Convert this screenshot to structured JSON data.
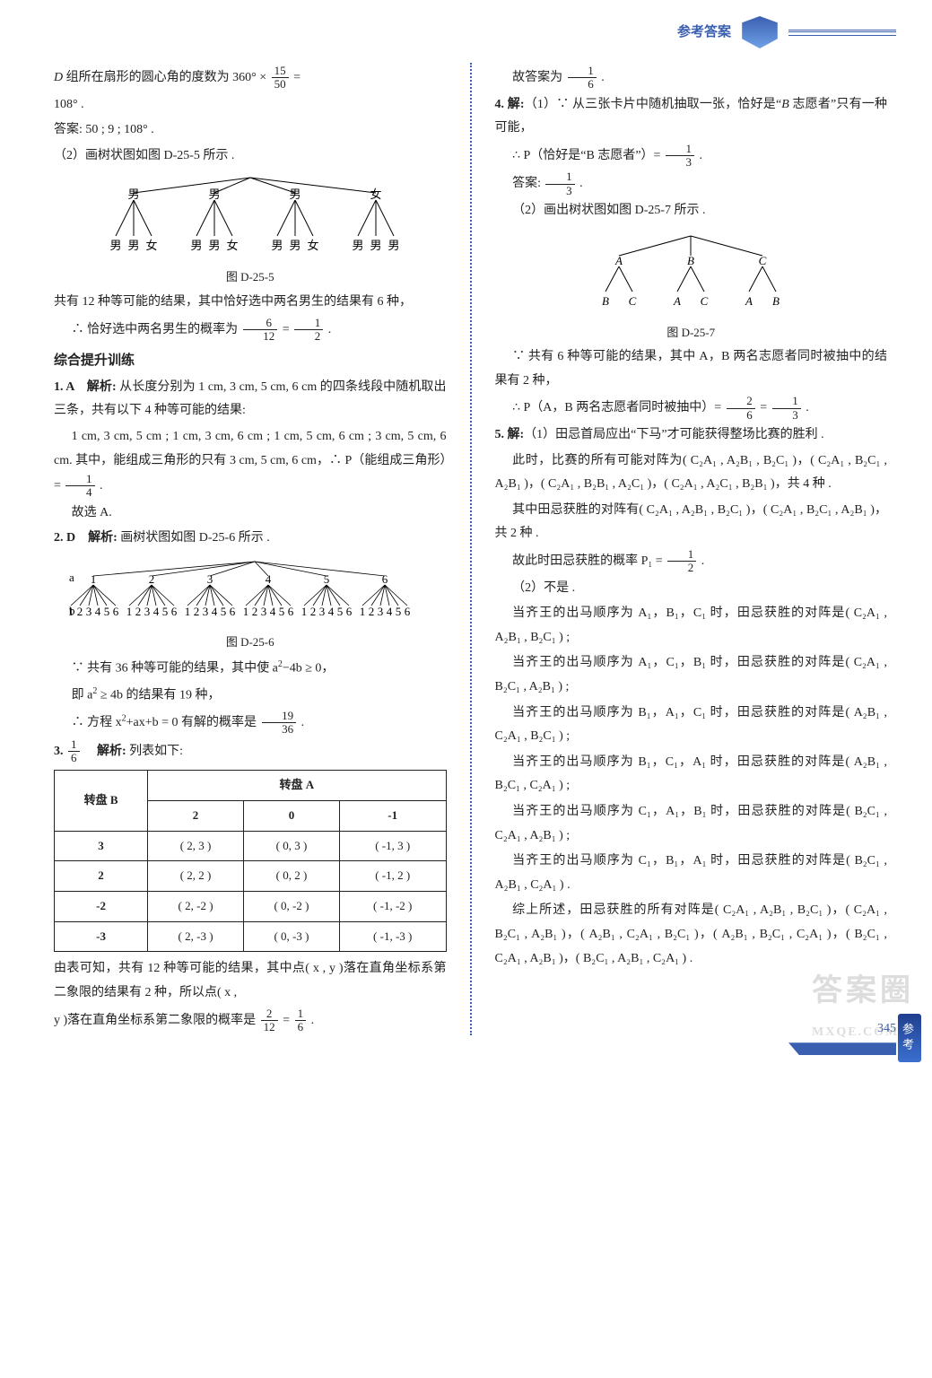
{
  "header": {
    "label": "参考答案"
  },
  "sideTab": "参考答案",
  "pageNumber": "345",
  "watermark": {
    "main": "答案圈",
    "sub": "MXQE.COM"
  },
  "left": {
    "l1a": "D ",
    "l1b": "组所在扇形的圆心角的度数为 360° × ",
    "l1frac": {
      "n": "15",
      "d": "50"
    },
    "l1c": " =",
    "l2": "108° .",
    "l3": "答案: 50 ; 9 ; 108° .",
    "l4": "（2）画树状图如图 D-25-5 所示 .",
    "tree1": {
      "caption": "图 D-25-5",
      "top": [
        "男",
        "男",
        "男",
        "女"
      ],
      "leaves": [
        "男",
        "男",
        "女",
        "男",
        "男",
        "女",
        "男",
        "男",
        "女",
        "男",
        "男",
        "男"
      ]
    },
    "l5": "共有 12 种等可能的结果，其中恰好选中两名男生的结果有 6 种，",
    "l6a": "∴ 恰好选中两名男生的概率为 ",
    "l6f1": {
      "n": "6",
      "d": "12"
    },
    "l6b": " = ",
    "l6f2": {
      "n": "1",
      "d": "2"
    },
    "l6c": " .",
    "secTitle": "综合提升训练",
    "q1": {
      "head": "1. A　解析:",
      "t1": " 从长度分别为 1 cm, 3 cm, 5 cm, 6 cm 的四条线段中随机取出三条，共有以下 4 种等可能的结果:",
      "t2": "1 cm, 3 cm, 5 cm ; 1 cm, 3 cm, 6 cm ; 1 cm, 5 cm, 6 cm ; 3 cm, 5 cm, 6 cm. 其中，能组成三角形的只有 3 cm, 5 cm, 6 cm，∴ P（能组成三角形）= ",
      "f": {
        "n": "1",
        "d": "4"
      },
      "t3": " .",
      "t4": "故选 A."
    },
    "q2": {
      "head": "2. D　解析:",
      "t1": " 画树状图如图 D-25-6 所示 .",
      "caption": "图 D-25-6",
      "aLabel": "a",
      "bLabel": "b",
      "aVals": [
        "1",
        "2",
        "3",
        "4",
        "5",
        "6"
      ],
      "bVals": [
        "1",
        "2",
        "3",
        "4",
        "5",
        "6"
      ],
      "t2a": "∵ 共有 36 种等可能的结果，其中使 a",
      "t2sup": "2",
      "t2b": "−4b ≥ 0，",
      "t3a": "即 a",
      "t3sup": "2",
      "t3b": " ≥ 4b 的结果有 19 种，",
      "t4a": "∴ 方程 x",
      "t4s1": "2",
      "t4b": "+ax+b = 0 有解的概率是",
      "f": {
        "n": "19",
        "d": "36"
      },
      "t4c": " ."
    },
    "q3": {
      "head": "3. ",
      "hf": {
        "n": "1",
        "d": "6"
      },
      "headb": "　解析:",
      "t1": " 列表如下:",
      "table": {
        "corner": "转盘 B",
        "topHeader": "转盘 A",
        "cols": [
          "2",
          "0",
          "-1"
        ],
        "rows": [
          {
            "h": "3",
            "c": [
              "( 2, 3 )",
              "( 0, 3 )",
              "( -1, 3 )"
            ]
          },
          {
            "h": "2",
            "c": [
              "( 2, 2 )",
              "( 0, 2 )",
              "( -1, 2 )"
            ]
          },
          {
            "h": "-2",
            "c": [
              "( 2, -2 )",
              "( 0, -2 )",
              "( -1, -2 )"
            ]
          },
          {
            "h": "-3",
            "c": [
              "( 2, -3 )",
              "( 0, -3 )",
              "( -1, -3 )"
            ]
          }
        ]
      },
      "t2": "由表可知，共有 12 种等可能的结果，其中点( x , y )落在直角坐标系第二象限的结果有 2 种，所以点( x , ",
      "t3a": "y )落在直角坐标系第二象限的概率是 ",
      "f1": {
        "n": "2",
        "d": "12"
      },
      "t3b": " = ",
      "f2": {
        "n": "1",
        "d": "6"
      },
      "t3c": " ."
    }
  },
  "right": {
    "r1a": "故答案为",
    "r1f": {
      "n": "1",
      "d": "6"
    },
    "r1b": " .",
    "q4": {
      "head": "4. 解:",
      "t1a": "（1）∵ 从三张卡片中随机抽取一张，恰好是“",
      "t1b": "B",
      "t1c": " 志愿者”只有一种可能，",
      "t2a": "∴ P（恰好是“B 志愿者”）= ",
      "f1": {
        "n": "1",
        "d": "3"
      },
      "t2b": " .",
      "t3a": "答案: ",
      "f2": {
        "n": "1",
        "d": "3"
      },
      "t3b": " .",
      "t4": "（2）画出树状图如图 D-25-7 所示 .",
      "tree": {
        "caption": "图 D-25-7",
        "top": [
          "A",
          "B",
          "C"
        ],
        "leaves": [
          [
            "B",
            "C"
          ],
          [
            "A",
            "C"
          ],
          [
            "A",
            "B"
          ]
        ]
      },
      "t5": "∵ 共有 6 种等可能的结果，其中 A，B 两名志愿者同时被抽中的结果有 2 种，",
      "t6a": "∴ P（A，B 两名志愿者同时被抽中）= ",
      "f3": {
        "n": "2",
        "d": "6"
      },
      "t6b": " = ",
      "f4": {
        "n": "1",
        "d": "3"
      },
      "t6c": " ."
    },
    "q5": {
      "head": "5. 解:",
      "t1": "（1）田忌首局应出“下马”才可能获得整场比赛的胜利 .",
      "t2": "此时，比赛的所有可能对阵为( C₂A₁ , A₂B₁ , B₂C₁ )，( C₂A₁ , B₂C₁ , A₂B₁ )，( C₂A₁ , B₂B₁ , A₂C₁ )，( C₂A₁ , A₂C₁ , B₂B₁ )，共 4 种 .",
      "t3": "其中田忌获胜的对阵有( C₂A₁ , A₂B₁ , B₂C₁ )，( C₂A₁ , B₂C₁ , A₂B₁ )，共 2 种 .",
      "t4a": "故此时田忌获胜的概率 P₁ = ",
      "f": {
        "n": "1",
        "d": "2"
      },
      "t4b": " .",
      "t5": "（2）不是 .",
      "t6": "当齐王的出马顺序为 A₁，B₁，C₁ 时，田忌获胜的对阵是( C₂A₁ , A₂B₁ , B₂C₁ ) ;",
      "t7": "当齐王的出马顺序为 A₁，C₁，B₁ 时，田忌获胜的对阵是( C₂A₁ , B₂C₁ , A₂B₁ ) ;",
      "t8": "当齐王的出马顺序为 B₁，A₁，C₁ 时，田忌获胜的对阵是( A₂B₁ , C₂A₁ , B₂C₁ ) ;",
      "t9": "当齐王的出马顺序为 B₁，C₁，A₁ 时，田忌获胜的对阵是( A₂B₁ , B₂C₁ , C₂A₁ ) ;",
      "t10": "当齐王的出马顺序为 C₁，A₁，B₁ 时，田忌获胜的对阵是( B₂C₁ , C₂A₁ , A₂B₁ ) ;",
      "t11": "当齐王的出马顺序为 C₁，B₁，A₁ 时，田忌获胜的对阵是( B₂C₁ , A₂B₁ , C₂A₁ ) .",
      "t12": "综上所述，田忌获胜的所有对阵是( C₂A₁ , A₂B₁ , B₂C₁ )，( C₂A₁ , B₂C₁ , A₂B₁ )，( A₂B₁ , C₂A₁ , B₂C₁ )，( A₂B₁ , B₂C₁ , C₂A₁ )，( B₂C₁ , C₂A₁ , A₂B₁ )，( B₂C₁ , A₂B₁ , C₂A₁ ) ."
    }
  }
}
